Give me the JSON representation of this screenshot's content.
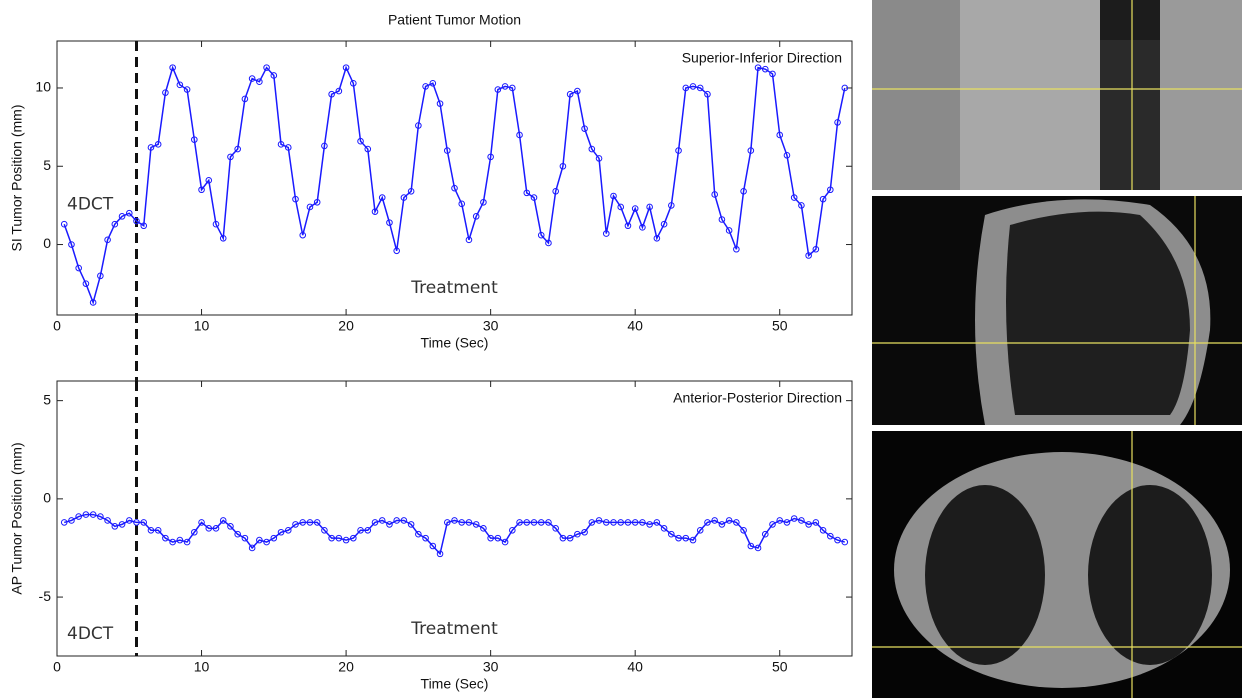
{
  "chart_data": [
    {
      "type": "line",
      "title": "Patient Tumor Motion",
      "x_label": "Time (Sec)",
      "y_label": "SI Tumor Position (mm)",
      "annotations": [
        "Superior-Inferior Direction",
        "4DCT",
        "Treatment"
      ],
      "vline": 5.5,
      "xlim": [
        0,
        55
      ],
      "ylim": [
        -4.5,
        13
      ],
      "xticks": [
        0,
        10,
        20,
        30,
        40,
        50
      ],
      "yticks": [
        0,
        5,
        10
      ],
      "color": "#1a1aff",
      "x": [
        0.5,
        1,
        1.5,
        2,
        2.5,
        3,
        3.5,
        4,
        4.5,
        5,
        5.5,
        6,
        6.5,
        7,
        7.5,
        8,
        8.5,
        9,
        9.5,
        10,
        10.5,
        11,
        11.5,
        12,
        12.5,
        13,
        13.5,
        14,
        14.5,
        15,
        15.5,
        16,
        16.5,
        17,
        17.5,
        18,
        18.5,
        19,
        19.5,
        20,
        20.5,
        21,
        21.5,
        22,
        22.5,
        23,
        23.5,
        24,
        24.5,
        25,
        25.5,
        26,
        26.5,
        27,
        27.5,
        28,
        28.5,
        29,
        29.5,
        30,
        30.5,
        31,
        31.5,
        32,
        32.5,
        33,
        33.5,
        34,
        34.5,
        35,
        35.5,
        36,
        36.5,
        37,
        37.5,
        38,
        38.5,
        39,
        39.5,
        40,
        40.5,
        41,
        41.5,
        42,
        42.5,
        43,
        43.5,
        44,
        44.5,
        45,
        45.5,
        46,
        46.5,
        47,
        47.5,
        48,
        48.5,
        49,
        49.5,
        50,
        50.5,
        51,
        51.5,
        52,
        52.5,
        53,
        53.5,
        54,
        54.5
      ],
      "values": [
        1.3,
        0,
        -1.5,
        -2.5,
        -3.7,
        -2,
        0.3,
        1.3,
        1.8,
        2,
        1.5,
        1.2,
        6.2,
        6.4,
        9.7,
        11.3,
        10.2,
        9.9,
        6.7,
        3.5,
        4.1,
        1.3,
        0.4,
        5.6,
        6.1,
        9.3,
        10.6,
        10.4,
        11.3,
        10.8,
        6.4,
        6.2,
        2.9,
        0.6,
        2.4,
        2.7,
        6.3,
        9.6,
        9.8,
        11.3,
        10.3,
        6.6,
        6.1,
        2.1,
        3.0,
        1.4,
        -0.4,
        3.0,
        3.4,
        7.6,
        10.1,
        10.3,
        9.0,
        6.0,
        3.6,
        2.6,
        0.3,
        1.8,
        2.7,
        5.6,
        9.9,
        10.1,
        10.0,
        7.0,
        3.3,
        3.0,
        0.6,
        0.1,
        3.4,
        5.0,
        9.6,
        9.8,
        7.4,
        6.1,
        5.5,
        0.7,
        3.1,
        2.4,
        1.2,
        2.3,
        1.1,
        2.4,
        0.4,
        1.3,
        2.5,
        6.0,
        10.0,
        10.1,
        10.0,
        9.6,
        3.2,
        1.6,
        0.9,
        -0.3,
        3.4,
        6.0,
        11.3,
        11.2,
        10.9,
        7.0,
        5.7,
        3.0,
        2.5,
        -0.7,
        -0.3,
        2.9,
        3.5,
        7.8,
        10.0
      ]
    },
    {
      "type": "line",
      "x_label": "Time (Sec)",
      "y_label": "AP Tumor Position (mm)",
      "annotations": [
        "Anterior-Posterior Direction",
        "4DCT",
        "Treatment"
      ],
      "vline": 5.5,
      "xlim": [
        0,
        55
      ],
      "ylim": [
        -8,
        6
      ],
      "xticks": [
        0,
        10,
        20,
        30,
        40,
        50
      ],
      "yticks": [
        -5,
        0,
        5
      ],
      "color": "#1a1aff",
      "x": [
        0.5,
        1,
        1.5,
        2,
        2.5,
        3,
        3.5,
        4,
        4.5,
        5,
        5.5,
        6,
        6.5,
        7,
        7.5,
        8,
        8.5,
        9,
        9.5,
        10,
        10.5,
        11,
        11.5,
        12,
        12.5,
        13,
        13.5,
        14,
        14.5,
        15,
        15.5,
        16,
        16.5,
        17,
        17.5,
        18,
        18.5,
        19,
        19.5,
        20,
        20.5,
        21,
        21.5,
        22,
        22.5,
        23,
        23.5,
        24,
        24.5,
        25,
        25.5,
        26,
        26.5,
        27,
        27.5,
        28,
        28.5,
        29,
        29.5,
        30,
        30.5,
        31,
        31.5,
        32,
        32.5,
        33,
        33.5,
        34,
        34.5,
        35,
        35.5,
        36,
        36.5,
        37,
        37.5,
        38,
        38.5,
        39,
        39.5,
        40,
        40.5,
        41,
        41.5,
        42,
        42.5,
        43,
        43.5,
        44,
        44.5,
        45,
        45.5,
        46,
        46.5,
        47,
        47.5,
        48,
        48.5,
        49,
        49.5,
        50,
        50.5,
        51,
        51.5,
        52,
        52.5,
        53,
        53.5,
        54,
        54.5
      ],
      "values": [
        -1.2,
        -1.1,
        -0.9,
        -0.8,
        -0.8,
        -0.9,
        -1.1,
        -1.4,
        -1.3,
        -1.1,
        -1.2,
        -1.2,
        -1.6,
        -1.6,
        -2.0,
        -2.2,
        -2.1,
        -2.2,
        -1.7,
        -1.2,
        -1.5,
        -1.5,
        -1.1,
        -1.4,
        -1.8,
        -2.0,
        -2.5,
        -2.1,
        -2.2,
        -2.0,
        -1.7,
        -1.6,
        -1.3,
        -1.2,
        -1.2,
        -1.2,
        -1.6,
        -2.0,
        -2.0,
        -2.1,
        -2.0,
        -1.6,
        -1.6,
        -1.2,
        -1.1,
        -1.3,
        -1.1,
        -1.1,
        -1.3,
        -1.8,
        -2.0,
        -2.4,
        -2.8,
        -1.2,
        -1.1,
        -1.2,
        -1.2,
        -1.3,
        -1.5,
        -2.0,
        -2.0,
        -2.2,
        -1.6,
        -1.2,
        -1.2,
        -1.2,
        -1.2,
        -1.2,
        -1.5,
        -2.0,
        -2.0,
        -1.8,
        -1.7,
        -1.2,
        -1.1,
        -1.2,
        -1.2,
        -1.2,
        -1.2,
        -1.2,
        -1.2,
        -1.3,
        -1.2,
        -1.5,
        -1.8,
        -2.0,
        -2.0,
        -2.1,
        -1.6,
        -1.2,
        -1.1,
        -1.3,
        -1.1,
        -1.2,
        -1.6,
        -2.4,
        -2.5,
        -1.8,
        -1.3,
        -1.1,
        -1.2,
        -1.0,
        -1.1,
        -1.3,
        -1.2,
        -1.6,
        -1.9,
        -2.1,
        -2.2
      ]
    }
  ]
}
